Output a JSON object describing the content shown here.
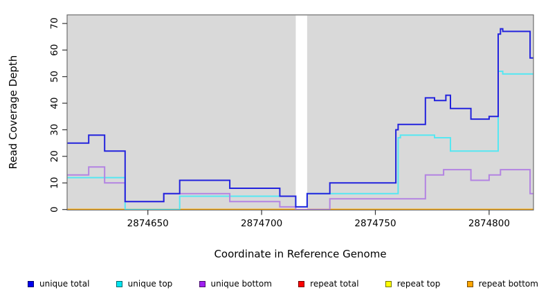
{
  "chart_data": {
    "type": "line",
    "subtype": "step",
    "title": "",
    "xlabel": "Coordinate in Reference Genome",
    "ylabel": "Read Coverage Depth",
    "xlim": [
      2874614.5,
      2874819.5
    ],
    "ylim": [
      0,
      70
    ],
    "x_ticks": [
      2874650,
      2874700,
      2874750,
      2874800
    ],
    "y_ticks": [
      0,
      10,
      20,
      30,
      40,
      50,
      60,
      70
    ],
    "grid": false,
    "plot_bg_color": "#d9d9d9",
    "box_color": "#6e6e6e",
    "gap_region": {
      "x_start": 2874715,
      "x_end": 2874720,
      "color": "#ffffff"
    },
    "legend_position": "bottom",
    "series": [
      {
        "name": "repeat total",
        "line_color": "#ee0000",
        "legend_color": "#ff0000",
        "steps": [
          [
            2874614.5,
            0
          ]
        ]
      },
      {
        "name": "repeat top",
        "line_color": "#ffff00",
        "legend_color": "#ffff00",
        "steps": [
          [
            2874614.5,
            0
          ]
        ]
      },
      {
        "name": "repeat bottom",
        "line_color": "#ffa500",
        "legend_color": "#ffa500",
        "steps": [
          [
            2874614.5,
            0
          ]
        ]
      },
      {
        "name": "unique top",
        "line_color": "#55e7f2",
        "legend_color": "#00e5f0",
        "steps": [
          [
            2874614.5,
            12
          ],
          [
            2874640,
            0
          ],
          [
            2874664,
            5
          ],
          [
            2874715,
            1
          ],
          [
            2874720,
            6
          ],
          [
            2874760,
            27
          ],
          [
            2874761,
            28
          ],
          [
            2874776,
            27
          ],
          [
            2874783,
            22
          ],
          [
            2874804,
            52
          ],
          [
            2874806,
            51
          ]
        ]
      },
      {
        "name": "unique bottom",
        "line_color": "#b383e2",
        "legend_color": "#a020f0",
        "steps": [
          [
            2874614.5,
            13
          ],
          [
            2874624,
            16
          ],
          [
            2874631,
            10
          ],
          [
            2874640,
            3
          ],
          [
            2874657,
            6
          ],
          [
            2874686,
            3
          ],
          [
            2874708,
            1
          ],
          [
            2874715,
            0
          ],
          [
            2874730,
            4
          ],
          [
            2874772,
            13
          ],
          [
            2874780,
            15
          ],
          [
            2874792,
            11
          ],
          [
            2874800,
            13
          ],
          [
            2874805,
            15
          ],
          [
            2874818,
            6
          ]
        ]
      },
      {
        "name": "unique total",
        "line_color": "#2222dd",
        "legend_color": "#0000ee",
        "steps": [
          [
            2874614.5,
            25
          ],
          [
            2874624,
            28
          ],
          [
            2874631,
            22
          ],
          [
            2874640,
            3
          ],
          [
            2874657,
            6
          ],
          [
            2874664,
            11
          ],
          [
            2874686,
            8
          ],
          [
            2874708,
            5
          ],
          [
            2874715,
            1
          ],
          [
            2874720,
            6
          ],
          [
            2874730,
            10
          ],
          [
            2874759,
            30
          ],
          [
            2874760,
            32
          ],
          [
            2874772,
            42
          ],
          [
            2874776,
            41
          ],
          [
            2874781,
            43
          ],
          [
            2874783,
            38
          ],
          [
            2874792,
            34
          ],
          [
            2874800,
            35
          ],
          [
            2874804,
            66
          ],
          [
            2874805,
            68
          ],
          [
            2874806,
            67
          ],
          [
            2874818,
            57
          ]
        ]
      }
    ]
  },
  "axes": {
    "x_title": "Coordinate in Reference Genome",
    "y_title": "Read Coverage Depth"
  },
  "legend": {
    "items": [
      {
        "label": "unique total",
        "color": "#0000ee"
      },
      {
        "label": "unique top",
        "color": "#00e5f0"
      },
      {
        "label": "unique bottom",
        "color": "#a020f0"
      },
      {
        "label": "repeat total",
        "color": "#ff0000"
      },
      {
        "label": "repeat top",
        "color": "#ffff00"
      },
      {
        "label": "repeat bottom",
        "color": "#ffa500"
      }
    ]
  }
}
